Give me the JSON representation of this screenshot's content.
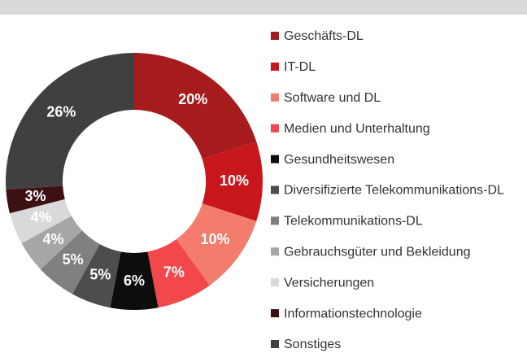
{
  "chart_data": {
    "type": "donut",
    "categories": [
      "Geschäfts-DL",
      "IT-DL",
      "Software und DL",
      "Medien und Unterhaltung",
      "Gesundheitswesen",
      "Diversifizierte Telekommunikations-DL",
      "Telekommunikations-DL",
      "Gebrauchsgüter und Bekleidung",
      "Versicherungen",
      "Informationstechnologie",
      "Sonstiges"
    ],
    "values": [
      20,
      10,
      10,
      7,
      6,
      5,
      5,
      4,
      4,
      3,
      26
    ],
    "value_labels": [
      "20%",
      "10%",
      "10%",
      "7%",
      "6%",
      "5%",
      "5%",
      "4%",
      "4%",
      "3%",
      "26%"
    ],
    "colors": [
      "#a61c1c",
      "#c8161d",
      "#f47c6c",
      "#f2484c",
      "#0d0d0d",
      "#4d4d4d",
      "#808080",
      "#a6a6a6",
      "#d9d9d9",
      "#3d1114",
      "#404040"
    ],
    "legend": "right"
  }
}
